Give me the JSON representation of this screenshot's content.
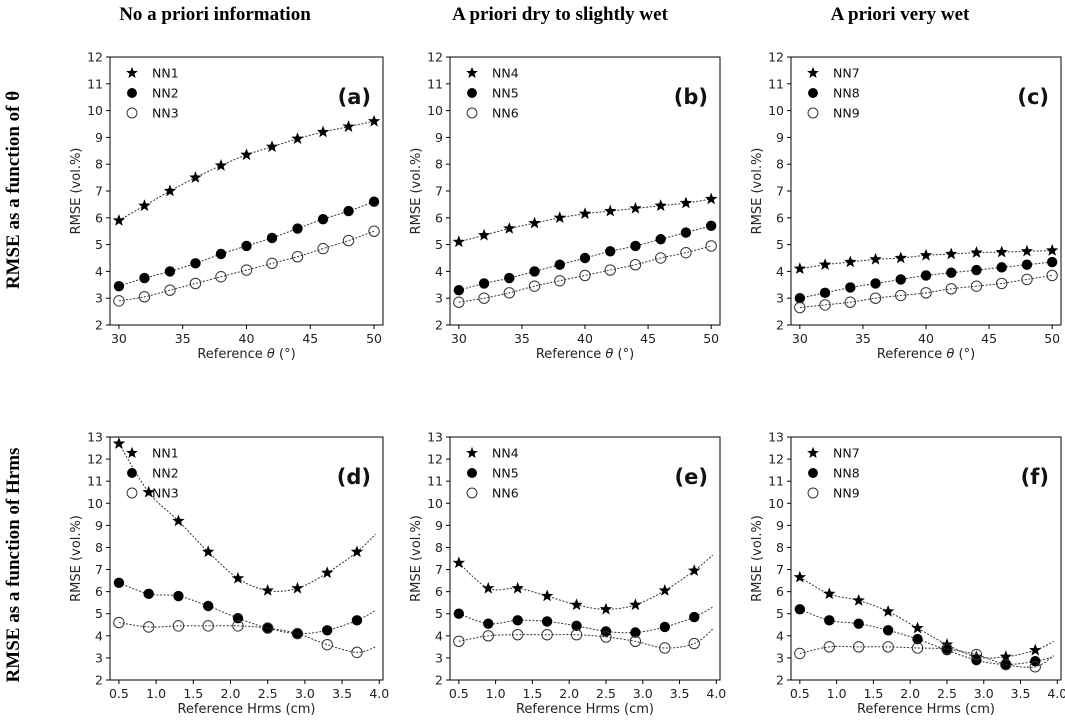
{
  "column_titles": [
    "No a priori information",
    "A priori dry to slightly wet",
    "A priori very wet"
  ],
  "row_titles": [
    "RMSE as a function of θ",
    "RMSE as a function of Hrms"
  ],
  "chart_data": [
    {
      "type": "line",
      "panel": "(a)",
      "xlabel_prefix": "Reference ",
      "xlabel_var": "θ",
      "xlabel_suffix": " (°)",
      "ylabel": "RMSE (vol.%)",
      "xlim": [
        29.3,
        50.7
      ],
      "ylim": [
        2,
        12
      ],
      "xticks": [
        30,
        35,
        40,
        45,
        50
      ],
      "yticks": [
        2,
        3,
        4,
        5,
        6,
        7,
        8,
        9,
        10,
        11,
        12
      ],
      "x": [
        30,
        32,
        34,
        36,
        38,
        40,
        42,
        44,
        46,
        48,
        50
      ],
      "series": [
        {
          "name": "NN1",
          "marker": "star",
          "values": [
            5.9,
            6.45,
            7.0,
            7.5,
            7.95,
            8.35,
            8.65,
            8.95,
            9.2,
            9.4,
            9.6
          ]
        },
        {
          "name": "NN2",
          "marker": "filled",
          "values": [
            3.45,
            3.75,
            4.0,
            4.3,
            4.65,
            4.95,
            5.25,
            5.6,
            5.95,
            6.25,
            6.6
          ]
        },
        {
          "name": "NN3",
          "marker": "open",
          "values": [
            2.9,
            3.05,
            3.3,
            3.55,
            3.8,
            4.05,
            4.3,
            4.55,
            4.85,
            5.15,
            5.5
          ]
        }
      ]
    },
    {
      "type": "line",
      "panel": "(b)",
      "xlabel_prefix": "Reference ",
      "xlabel_var": "θ",
      "xlabel_suffix": " (°)",
      "ylabel": "RMSE (vol.%)",
      "xlim": [
        29.3,
        50.7
      ],
      "ylim": [
        2,
        12
      ],
      "xticks": [
        30,
        35,
        40,
        45,
        50
      ],
      "yticks": [
        2,
        3,
        4,
        5,
        6,
        7,
        8,
        9,
        10,
        11,
        12
      ],
      "x": [
        30,
        32,
        34,
        36,
        38,
        40,
        42,
        44,
        46,
        48,
        50
      ],
      "series": [
        {
          "name": "NN4",
          "marker": "star",
          "values": [
            5.1,
            5.35,
            5.6,
            5.8,
            6.0,
            6.15,
            6.25,
            6.35,
            6.45,
            6.55,
            6.7
          ]
        },
        {
          "name": "NN5",
          "marker": "filled",
          "values": [
            3.3,
            3.55,
            3.75,
            4.0,
            4.25,
            4.5,
            4.75,
            4.95,
            5.2,
            5.45,
            5.7
          ]
        },
        {
          "name": "NN6",
          "marker": "open",
          "values": [
            2.85,
            3.0,
            3.2,
            3.45,
            3.65,
            3.85,
            4.05,
            4.25,
            4.5,
            4.7,
            4.95
          ]
        }
      ]
    },
    {
      "type": "line",
      "panel": "(c)",
      "xlabel_prefix": "Reference ",
      "xlabel_var": "θ",
      "xlabel_suffix": " (°)",
      "ylabel": "RMSE (vol.%)",
      "xlim": [
        29.3,
        50.7
      ],
      "ylim": [
        2,
        12
      ],
      "xticks": [
        30,
        35,
        40,
        45,
        50
      ],
      "yticks": [
        2,
        3,
        4,
        5,
        6,
        7,
        8,
        9,
        10,
        11,
        12
      ],
      "x": [
        30,
        32,
        34,
        36,
        38,
        40,
        42,
        44,
        46,
        48,
        50
      ],
      "series": [
        {
          "name": "NN7",
          "marker": "star",
          "values": [
            4.1,
            4.25,
            4.35,
            4.45,
            4.5,
            4.6,
            4.65,
            4.7,
            4.72,
            4.75,
            4.78
          ]
        },
        {
          "name": "NN8",
          "marker": "filled",
          "values": [
            3.0,
            3.2,
            3.4,
            3.55,
            3.7,
            3.85,
            3.95,
            4.05,
            4.15,
            4.25,
            4.35
          ]
        },
        {
          "name": "NN9",
          "marker": "open",
          "values": [
            2.65,
            2.75,
            2.85,
            3.0,
            3.1,
            3.2,
            3.35,
            3.45,
            3.55,
            3.7,
            3.85
          ]
        }
      ]
    },
    {
      "type": "line",
      "panel": "(d)",
      "xlabel": "Reference Hrms (cm)",
      "ylabel": "RMSE (vol.%)",
      "xlim": [
        0.38,
        4.05
      ],
      "ylim": [
        2,
        13
      ],
      "xticks": [
        0.5,
        1.0,
        1.5,
        2.0,
        2.5,
        3.0,
        3.5,
        4.0
      ],
      "yticks": [
        2,
        3,
        4,
        5,
        6,
        7,
        8,
        9,
        10,
        11,
        12,
        13
      ],
      "x": [
        0.5,
        0.9,
        1.3,
        1.7,
        2.1,
        2.5,
        2.9,
        3.3,
        3.7
      ],
      "curve_end": 3.95,
      "series": [
        {
          "name": "NN1",
          "marker": "star",
          "values": [
            12.7,
            10.5,
            9.2,
            7.8,
            6.6,
            6.05,
            6.15,
            6.85,
            7.8
          ],
          "end_value": 8.6
        },
        {
          "name": "NN2",
          "marker": "filled",
          "values": [
            6.4,
            5.9,
            5.8,
            5.35,
            4.8,
            4.35,
            4.1,
            4.25,
            4.7
          ],
          "end_value": 5.15
        },
        {
          "name": "NN3",
          "marker": "open",
          "values": [
            4.6,
            4.4,
            4.45,
            4.45,
            4.45,
            4.35,
            4.1,
            3.6,
            3.25
          ],
          "end_value": 3.5
        }
      ]
    },
    {
      "type": "line",
      "panel": "(e)",
      "xlabel": "Reference Hrms (cm)",
      "ylabel": "RMSE (vol.%)",
      "xlim": [
        0.38,
        4.05
      ],
      "ylim": [
        2,
        13
      ],
      "xticks": [
        0.5,
        1.0,
        1.5,
        2.0,
        2.5,
        3.0,
        3.5,
        4.0
      ],
      "yticks": [
        2,
        3,
        4,
        5,
        6,
        7,
        8,
        9,
        10,
        11,
        12,
        13
      ],
      "x": [
        0.5,
        0.9,
        1.3,
        1.7,
        2.1,
        2.5,
        2.9,
        3.3,
        3.7
      ],
      "curve_end": 3.95,
      "series": [
        {
          "name": "NN4",
          "marker": "star",
          "values": [
            7.3,
            6.15,
            6.15,
            5.8,
            5.4,
            5.2,
            5.4,
            6.05,
            6.95
          ],
          "end_value": 7.65
        },
        {
          "name": "NN5",
          "marker": "filled",
          "values": [
            5.0,
            4.55,
            4.7,
            4.65,
            4.45,
            4.2,
            4.15,
            4.4,
            4.85
          ],
          "end_value": 5.3
        },
        {
          "name": "NN6",
          "marker": "open",
          "values": [
            3.75,
            4.0,
            4.05,
            4.05,
            4.05,
            3.95,
            3.75,
            3.45,
            3.65
          ],
          "end_value": 4.3
        }
      ]
    },
    {
      "type": "line",
      "panel": "(f)",
      "xlabel": "Reference Hrms (cm)",
      "ylabel": "RMSE (vol.%)",
      "xlim": [
        0.38,
        4.05
      ],
      "ylim": [
        2,
        13
      ],
      "xticks": [
        0.5,
        1.0,
        1.5,
        2.0,
        2.5,
        3.0,
        3.5,
        4.0
      ],
      "yticks": [
        2,
        3,
        4,
        5,
        6,
        7,
        8,
        9,
        10,
        11,
        12,
        13
      ],
      "x": [
        0.5,
        0.9,
        1.3,
        1.7,
        2.1,
        2.5,
        2.9,
        3.3,
        3.7
      ],
      "curve_end": 3.95,
      "series": [
        {
          "name": "NN7",
          "marker": "star",
          "values": [
            6.65,
            5.9,
            5.6,
            5.1,
            4.35,
            3.6,
            3.05,
            3.05,
            3.35
          ],
          "end_value": 3.75
        },
        {
          "name": "NN8",
          "marker": "filled",
          "values": [
            5.2,
            4.7,
            4.55,
            4.25,
            3.85,
            3.35,
            2.9,
            2.7,
            2.85
          ],
          "end_value": 3.05
        },
        {
          "name": "NN9",
          "marker": "open",
          "values": [
            3.2,
            3.5,
            3.5,
            3.5,
            3.45,
            3.4,
            3.15,
            2.7,
            2.6
          ],
          "end_value": 3.1
        }
      ]
    }
  ]
}
